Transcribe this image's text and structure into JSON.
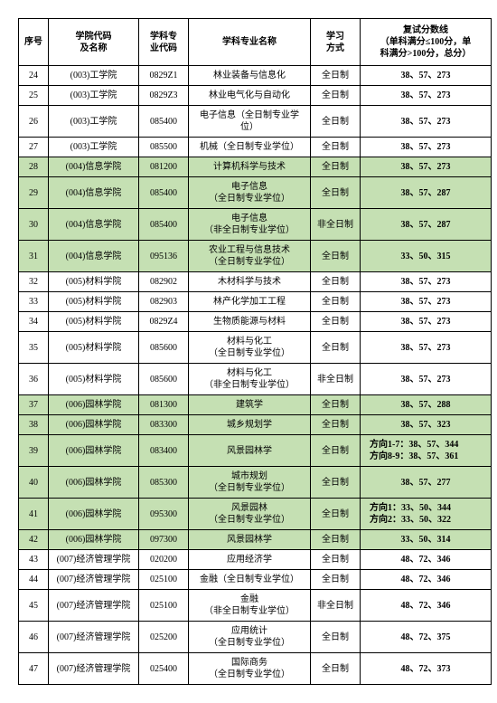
{
  "header": {
    "seq": "序号",
    "school": "学院代码\n及名称",
    "code": "学科专\n业代码",
    "major": "学科专业名称",
    "mode": "学习\n方式",
    "score": "复试分数线\n（单科满分≤100分，单\n科满分>100分，总分）"
  },
  "rows": [
    {
      "seq": "24",
      "school": "(003)工学院",
      "code": "0829Z1",
      "major": "林业装备与信息化",
      "mode": "全日制",
      "score": "38、57、273"
    },
    {
      "seq": "25",
      "school": "(003)工学院",
      "code": "0829Z3",
      "major": "林业电气化与自动化",
      "mode": "全日制",
      "score": "38、57、273"
    },
    {
      "seq": "26",
      "school": "(003)工学院",
      "code": "085400",
      "major": "电子信息（全日制专业学\n位）",
      "mode": "全日制",
      "score": "38、57、273"
    },
    {
      "seq": "27",
      "school": "(003)工学院",
      "code": "085500",
      "major": "机械（全日制专业学位）",
      "mode": "全日制",
      "score": "38、57、273"
    },
    {
      "seq": "28",
      "school": "(004)信息学院",
      "code": "081200",
      "major": "计算机科学与技术",
      "mode": "全日制",
      "score": "38、57、273",
      "hl": true
    },
    {
      "seq": "29",
      "school": "(004)信息学院",
      "code": "085400",
      "major": "电子信息\n（全日制专业学位）",
      "mode": "全日制",
      "score": "38、57、287",
      "hl": true
    },
    {
      "seq": "30",
      "school": "(004)信息学院",
      "code": "085400",
      "major": "电子信息\n（非全日制专业学位）",
      "mode": "非全日制",
      "score": "38、57、287",
      "hl": true
    },
    {
      "seq": "31",
      "school": "(004)信息学院",
      "code": "095136",
      "major": "农业工程与信息技术\n（全日制专业学位）",
      "mode": "全日制",
      "score": "33、50、315",
      "hl": true
    },
    {
      "seq": "32",
      "school": "(005)材料学院",
      "code": "082902",
      "major": "木材科学与技术",
      "mode": "全日制",
      "score": "38、57、273"
    },
    {
      "seq": "33",
      "school": "(005)材料学院",
      "code": "082903",
      "major": "林产化学加工工程",
      "mode": "全日制",
      "score": "38、57、273"
    },
    {
      "seq": "34",
      "school": "(005)材料学院",
      "code": "0829Z4",
      "major": "生物质能源与材料",
      "mode": "全日制",
      "score": "38、57、273"
    },
    {
      "seq": "35",
      "school": "(005)材料学院",
      "code": "085600",
      "major": "材料与化工\n（全日制专业学位）",
      "mode": "全日制",
      "score": "38、57、273"
    },
    {
      "seq": "36",
      "school": "(005)材料学院",
      "code": "085600",
      "major": "材料与化工\n（非全日制专业学位）",
      "mode": "非全日制",
      "score": "38、57、273"
    },
    {
      "seq": "37",
      "school": "(006)园林学院",
      "code": "081300",
      "major": "建筑学",
      "mode": "全日制",
      "score": "38、57、288",
      "hl": true
    },
    {
      "seq": "38",
      "school": "(006)园林学院",
      "code": "083300",
      "major": "城乡规划学",
      "mode": "全日制",
      "score": "38、57、323",
      "hl": true
    },
    {
      "seq": "39",
      "school": "(006)园林学院",
      "code": "083400",
      "major": "风景园林学",
      "mode": "全日制",
      "score_lines": [
        "方向1-7：38、57、344",
        "方向8-9：38、57、361"
      ],
      "hl": true
    },
    {
      "seq": "40",
      "school": "(006)园林学院",
      "code": "085300",
      "major": "城市规划\n（全日制专业学位）",
      "mode": "全日制",
      "score": "38、57、277",
      "hl": true
    },
    {
      "seq": "41",
      "school": "(006)园林学院",
      "code": "095300",
      "major": "风景园林\n（全日制专业学位）",
      "mode": "全日制",
      "score_lines": [
        "方向1：33、50、344",
        "方向2：33、50、322"
      ],
      "hl": true
    },
    {
      "seq": "42",
      "school": "(006)园林学院",
      "code": "097300",
      "major": "风景园林学",
      "mode": "全日制",
      "score": "33、50、314",
      "hl": true
    },
    {
      "seq": "43",
      "school": "(007)经济管理学院",
      "code": "020200",
      "major": "应用经济学",
      "mode": "全日制",
      "score": "48、72、346"
    },
    {
      "seq": "44",
      "school": "(007)经济管理学院",
      "code": "025100",
      "major": "金融（全日制专业学位）",
      "mode": "全日制",
      "score": "48、72、346"
    },
    {
      "seq": "45",
      "school": "(007)经济管理学院",
      "code": "025100",
      "major": "金融\n（非全日制专业学位）",
      "mode": "非全日制",
      "score": "48、72、346"
    },
    {
      "seq": "46",
      "school": "(007)经济管理学院",
      "code": "025200",
      "major": "应用统计\n（全日制专业学位）",
      "mode": "全日制",
      "score": "48、72、375"
    },
    {
      "seq": "47",
      "school": "(007)经济管理学院",
      "code": "025400",
      "major": "国际商务\n（全日制专业学位）",
      "mode": "全日制",
      "score": "48、72、373"
    }
  ]
}
